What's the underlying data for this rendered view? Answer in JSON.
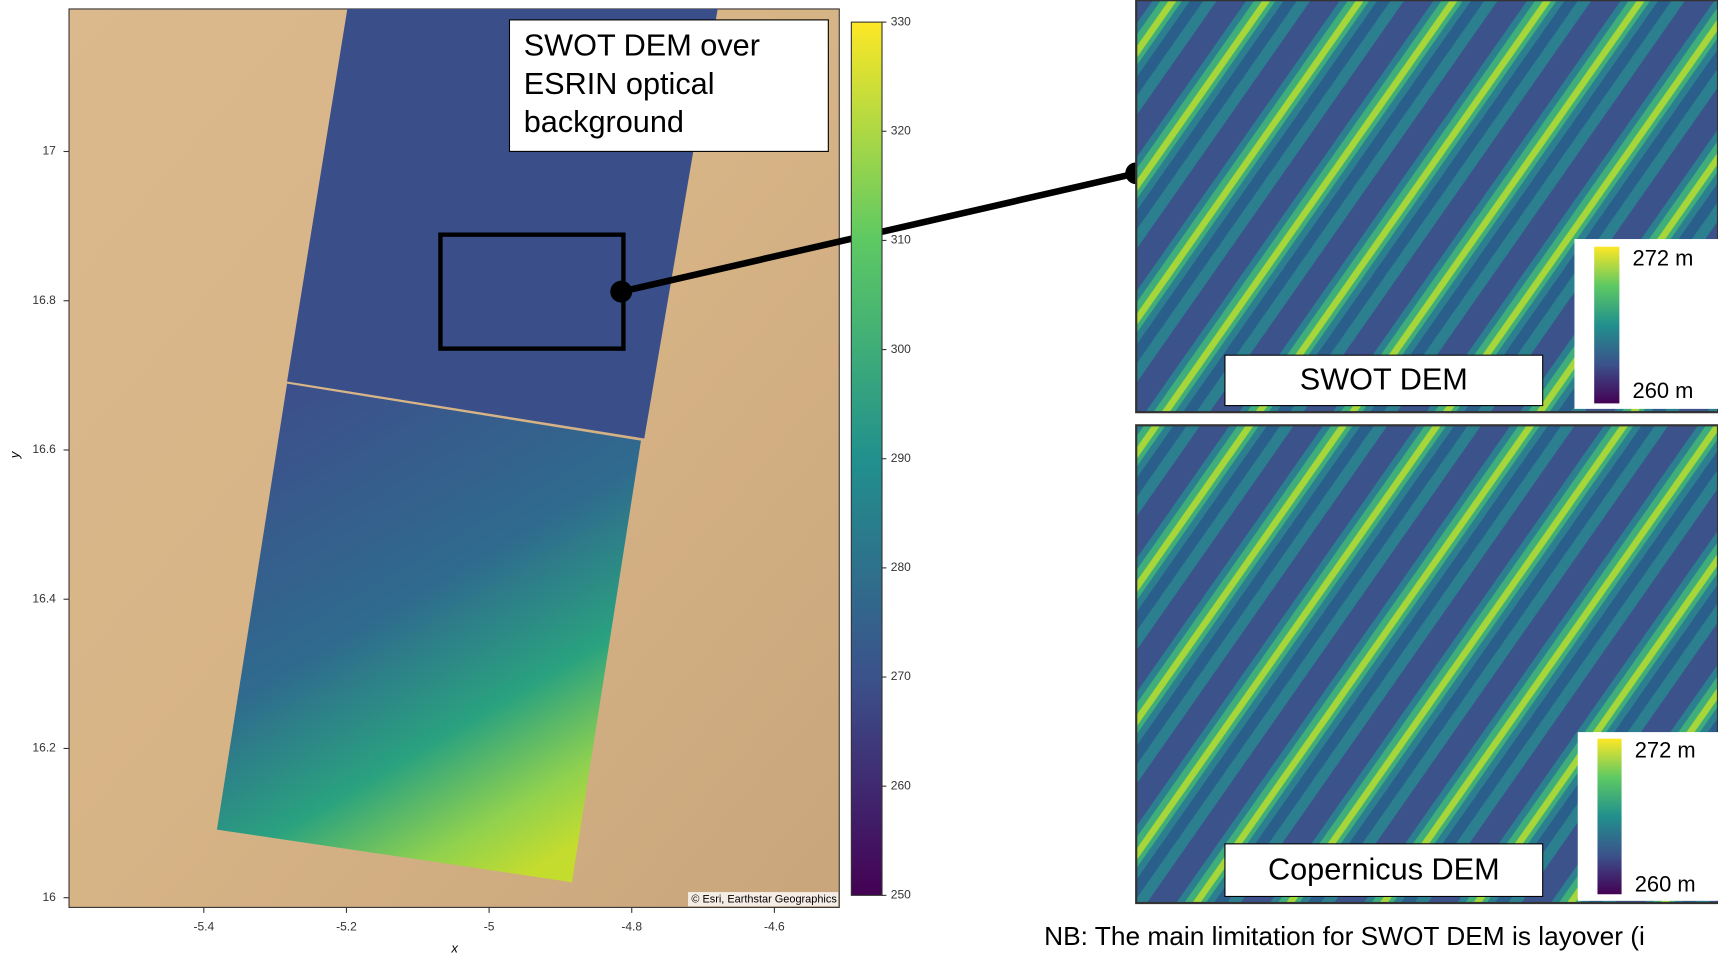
{
  "map": {
    "xlabel": "x",
    "ylabel": "y",
    "xlim": [
      -5.589,
      -4.509
    ],
    "ylim": [
      15.987,
      17.191
    ],
    "xticks": [
      -5.4,
      -5.2,
      -5,
      -4.8,
      -4.6
    ],
    "yticks": [
      16,
      16.2,
      16.4,
      16.6,
      16.8,
      17
    ],
    "colorbar": {
      "lim": [
        250,
        330
      ],
      "ticks": [
        250,
        260,
        270,
        280,
        290,
        300,
        310,
        320,
        330
      ]
    },
    "attribution": "© Esri, Earthstar Geographics"
  },
  "annotation": {
    "lines": [
      "SWOT DEM over",
      "ESRIN optical",
      "background"
    ]
  },
  "insets": [
    {
      "label": "SWOT DEM",
      "legend_max": "272 m",
      "legend_min": "260 m"
    },
    {
      "label": "Copernicus DEM",
      "legend_max": "272 m",
      "legend_min": "260 m"
    }
  ],
  "note": "NB: The main limitation for SWOT DEM is layover (i"
}
